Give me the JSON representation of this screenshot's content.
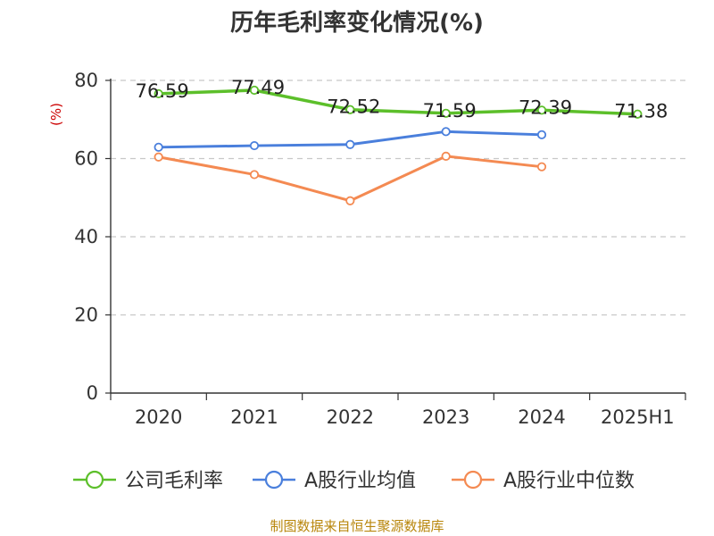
{
  "chart_data": {
    "type": "line",
    "title": "历年毛利率变化情况(%)",
    "ylabel": "(%)",
    "xlabel": "",
    "categories": [
      "2020",
      "2021",
      "2022",
      "2023",
      "2024",
      "2025H1"
    ],
    "ylim": [
      0,
      80
    ],
    "yticks": [
      0,
      20,
      40,
      60,
      80
    ],
    "grid": true,
    "legend_position": "bottom",
    "series": [
      {
        "name": "公司毛利率",
        "color": "#5cbf2a",
        "values": [
          76.59,
          77.49,
          72.52,
          71.59,
          72.39,
          71.38
        ],
        "labels": [
          "76.59",
          "77.49",
          "72.52",
          "71.59",
          "72.39",
          "71.38"
        ]
      },
      {
        "name": "A股行业均值",
        "color": "#4a7fdc",
        "values": [
          62.9,
          63.3,
          63.6,
          66.9,
          66.1,
          null
        ]
      },
      {
        "name": "A股行业中位数",
        "color": "#f48a52",
        "values": [
          60.4,
          55.9,
          49.2,
          60.6,
          57.9,
          null
        ]
      }
    ],
    "source": "制图数据来自恒生聚源数据库"
  }
}
